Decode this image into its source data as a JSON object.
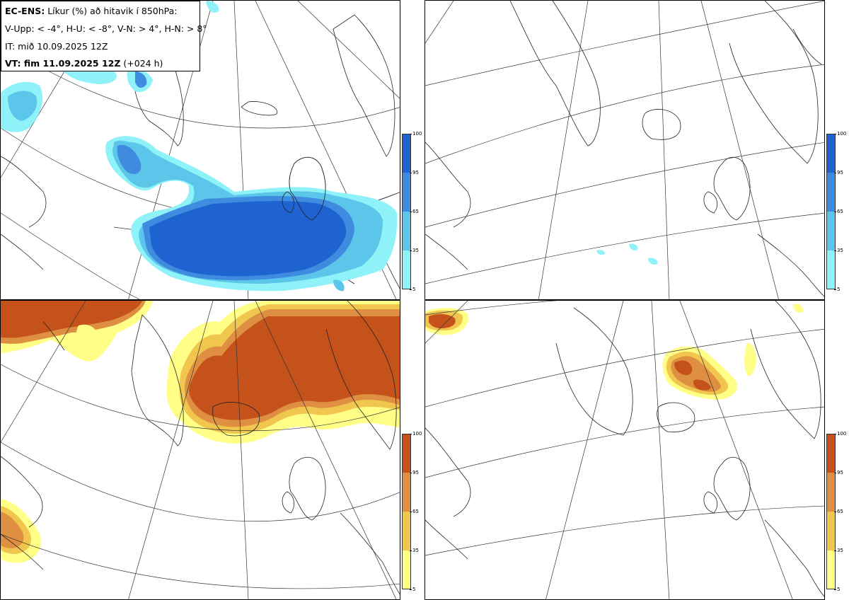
{
  "header": {
    "model_label": "EC-ENS:",
    "title_rest": "Líkur (%) að hitavik í 850hPa:",
    "criteria": "V-Upp: < -4°, H-U: < -8°, V-N: > 4°, H-N: > 8°",
    "init_time": "IT: mið 10.09.2025 12Z",
    "valid_label": "VT: fim 11.09.2025 12Z",
    "lead_time": "(+024 h)"
  },
  "colorbars": {
    "cold": {
      "ticks": [
        "100",
        "95",
        "65",
        "35",
        "5"
      ],
      "colors": [
        "#1f63d1",
        "#3f8be0",
        "#5bc6ea",
        "#8ff2f8"
      ]
    },
    "warm": {
      "ticks": [
        "100",
        "95",
        "65",
        "35",
        "5"
      ],
      "colors": [
        "#c4521a",
        "#de8f42",
        "#f0c64f",
        "#ffff88"
      ]
    }
  },
  "panels": [
    {
      "id": "V-Upp",
      "palette": "cold"
    },
    {
      "id": "H-U",
      "palette": "cold"
    },
    {
      "id": "V-N",
      "palette": "warm"
    },
    {
      "id": "H-N",
      "palette": "warm"
    }
  ]
}
